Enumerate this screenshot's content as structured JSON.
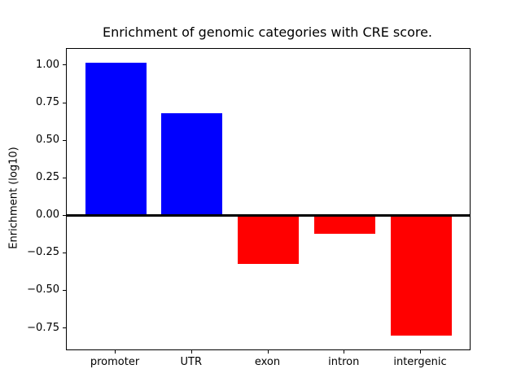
{
  "figure": {
    "title": "Enrichment of genomic categories with CRE score.",
    "ylabel": "Enrichment (log10)"
  },
  "chart_data": {
    "type": "bar",
    "title": "Enrichment of genomic categories with CRE score.",
    "xlabel": "",
    "ylabel": "Enrichment (log10)",
    "categories": [
      "promoter",
      "UTR",
      "exon",
      "intron",
      "intergenic"
    ],
    "values": [
      1.02,
      0.68,
      -0.32,
      -0.12,
      -0.8
    ],
    "bar_colors": [
      "#0000ff",
      "#0000ff",
      "#ff0000",
      "#ff0000",
      "#ff0000"
    ],
    "positive_color": "#0000ff",
    "negative_color": "#ff0000",
    "yticks": [
      1.0,
      0.75,
      0.5,
      0.25,
      0.0,
      -0.25,
      -0.5,
      -0.75
    ],
    "ytick_labels": [
      "1.00",
      "0.75",
      "0.50",
      "0.25",
      "0.00",
      "−0.25",
      "−0.50",
      "−0.75"
    ],
    "ylim": [
      -0.891,
      1.111
    ],
    "xlim": [
      -0.64,
      4.64
    ],
    "bar_width_fraction": 0.8,
    "grid": false,
    "legend": null,
    "zero_line": true,
    "axes_color": "#000000",
    "background_color": "#ffffff"
  }
}
